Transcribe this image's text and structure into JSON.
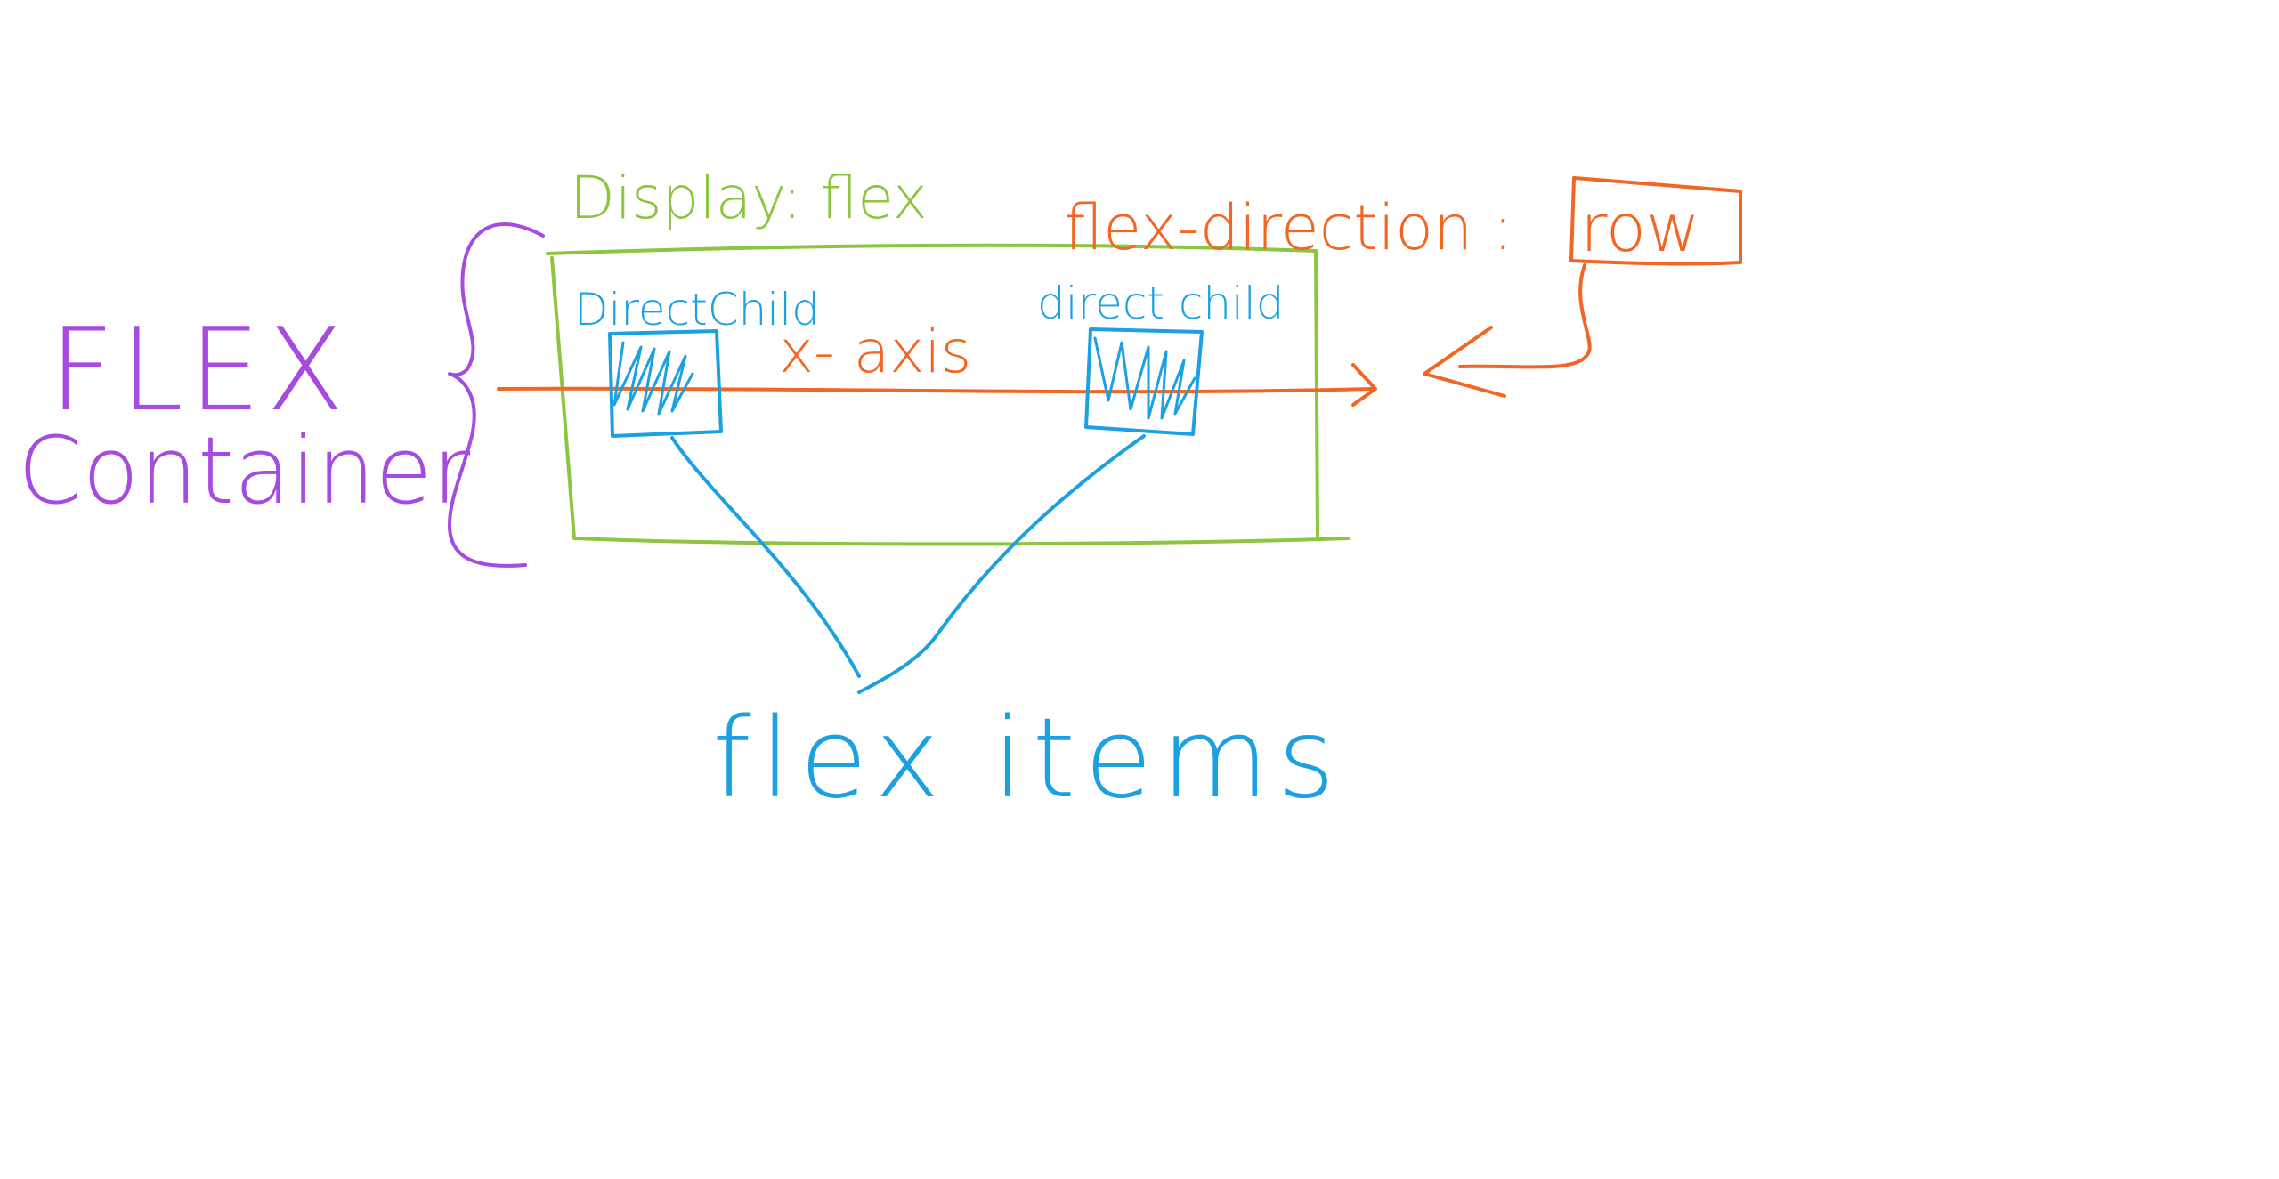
{
  "colors": {
    "container": "#8cc63f",
    "axis": "#f26522",
    "items": "#1ba1e2",
    "label": "#a64bdf",
    "background": "#ffffff"
  },
  "labels": {
    "flex": "FLEX",
    "container": "Container",
    "display": "Display: flex",
    "flex_direction": "flex-direction :",
    "row": "row",
    "child_left": "DirectChild",
    "child_right": "direct child",
    "x_axis": "x- axis",
    "flex_items": "flex items"
  }
}
